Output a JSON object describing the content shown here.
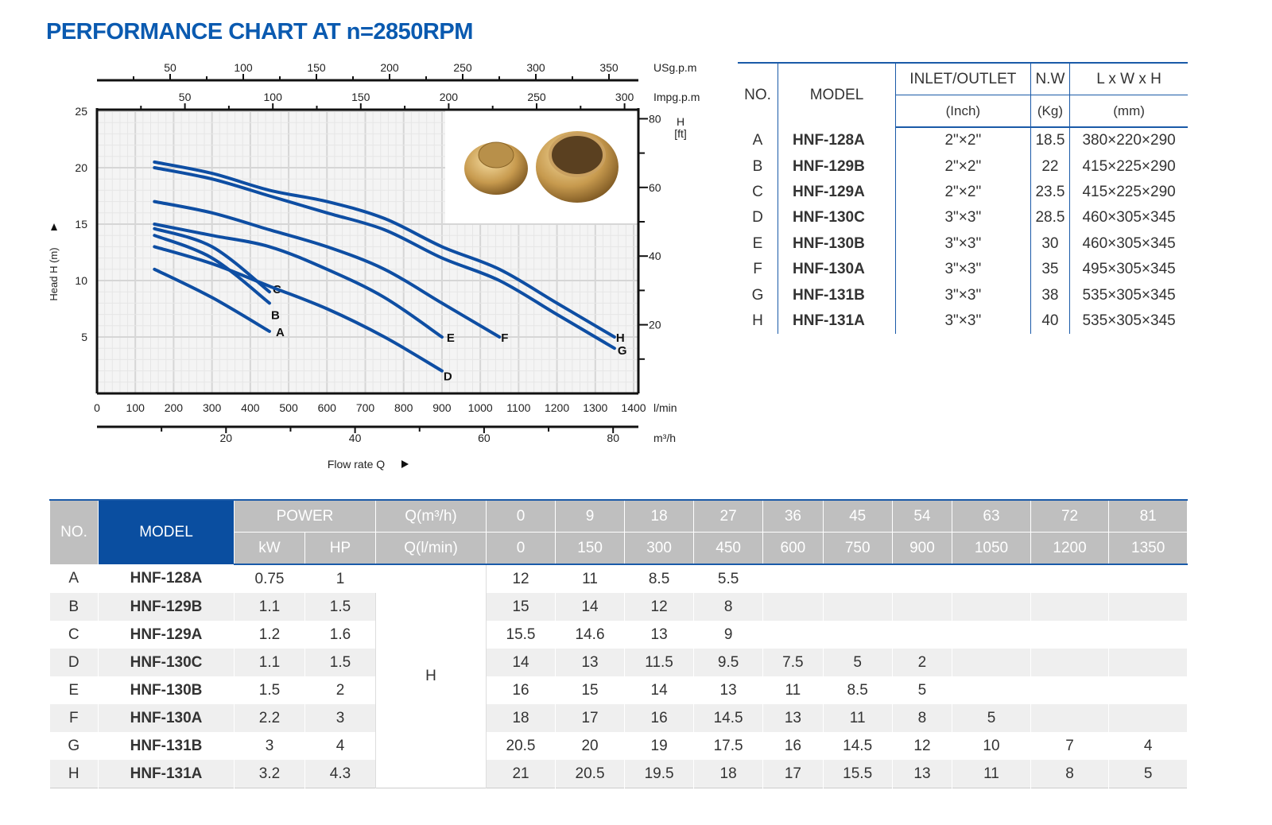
{
  "title": "PERFORMANCE CHART AT n=2850RPM",
  "chart_data": {
    "type": "line",
    "title": "PERFORMANCE CHART AT n=2850RPM",
    "xlabel": "Flow rate Q",
    "ylabel": "Head H (m)",
    "x_unit": "l/min",
    "xlim": [
      0,
      1400
    ],
    "ylim": [
      0,
      25
    ],
    "x_ticks": [
      0,
      100,
      200,
      300,
      400,
      500,
      600,
      700,
      800,
      900,
      1000,
      1100,
      1200,
      1300,
      1400
    ],
    "y_ticks": [
      5,
      10,
      15,
      20,
      25
    ],
    "usgpm_label": "USg.p.m",
    "usgpm_ticks": [
      50,
      100,
      150,
      200,
      250,
      300,
      350
    ],
    "impgpm_label": "Impg.p.m",
    "impgpm_ticks": [
      50,
      100,
      150,
      200,
      250,
      300
    ],
    "m3h_label": "m³/h",
    "m3h_ticks": [
      20,
      40,
      60,
      80
    ],
    "ft_label": "H\n[ft]",
    "ft_label_1": "H",
    "ft_label_2": "[ft]",
    "ft_ticks": [
      20,
      40,
      60,
      80
    ],
    "grid": true,
    "series": [
      {
        "name": "A",
        "x": [
          150,
          300,
          450
        ],
        "y": [
          11,
          8.5,
          5.5
        ]
      },
      {
        "name": "B",
        "x": [
          150,
          300,
          450
        ],
        "y": [
          14,
          12,
          8
        ]
      },
      {
        "name": "C",
        "x": [
          150,
          300,
          450
        ],
        "y": [
          14.6,
          13,
          9
        ]
      },
      {
        "name": "D",
        "x": [
          150,
          300,
          450,
          600,
          750,
          900
        ],
        "y": [
          13,
          11.5,
          9.5,
          7.5,
          5,
          2
        ]
      },
      {
        "name": "E",
        "x": [
          150,
          300,
          450,
          600,
          750,
          900
        ],
        "y": [
          15,
          14,
          13,
          11,
          8.5,
          5
        ]
      },
      {
        "name": "F",
        "x": [
          150,
          300,
          450,
          600,
          750,
          900,
          1050
        ],
        "y": [
          17,
          16,
          14.5,
          13,
          11,
          8,
          5
        ]
      },
      {
        "name": "G",
        "x": [
          150,
          300,
          450,
          600,
          750,
          900,
          1050,
          1200,
          1350
        ],
        "y": [
          20,
          19,
          17.5,
          16,
          14.5,
          12,
          10,
          7,
          4
        ]
      },
      {
        "name": "H",
        "x": [
          150,
          300,
          450,
          600,
          750,
          900,
          1050,
          1200,
          1350
        ],
        "y": [
          20.5,
          19.5,
          18,
          17,
          15.5,
          13,
          11,
          8,
          5
        ]
      }
    ],
    "line_color": "#0e4ea3"
  },
  "spec_table": {
    "headers": {
      "no": "NO.",
      "model": "MODEL",
      "io": "INLET/OUTLET",
      "nw": "N.W",
      "dim": "L x W x H",
      "io_unit": "(Inch)",
      "nw_unit": "(Kg)",
      "dim_unit": "(mm)"
    },
    "rows": [
      {
        "no": "A",
        "model": "HNF-128A",
        "io": "2\"×2\"",
        "nw": "18.5",
        "dim": "380×220×290"
      },
      {
        "no": "B",
        "model": "HNF-129B",
        "io": "2\"×2\"",
        "nw": "22",
        "dim": "415×225×290"
      },
      {
        "no": "C",
        "model": "HNF-129A",
        "io": "2\"×2\"",
        "nw": "23.5",
        "dim": "415×225×290"
      },
      {
        "no": "D",
        "model": "HNF-130C",
        "io": "3\"×3\"",
        "nw": "28.5",
        "dim": "460×305×345"
      },
      {
        "no": "E",
        "model": "HNF-130B",
        "io": "3\"×3\"",
        "nw": "30",
        "dim": "460×305×345"
      },
      {
        "no": "F",
        "model": "HNF-130A",
        "io": "3\"×3\"",
        "nw": "35",
        "dim": "495×305×345"
      },
      {
        "no": "G",
        "model": "HNF-131B",
        "io": "3\"×3\"",
        "nw": "38",
        "dim": "535×305×345"
      },
      {
        "no": "H",
        "model": "HNF-131A",
        "io": "3\"×3\"",
        "nw": "40",
        "dim": "535×305×345"
      }
    ]
  },
  "perf_table": {
    "headers": {
      "no": "NO.",
      "model": "MODEL",
      "power": "POWER",
      "kw": "kW",
      "hp": "HP",
      "qm3": "Q(m³/h)",
      "ql": "Q(l/min)",
      "h": "H"
    },
    "q_m3h": [
      "0",
      "9",
      "18",
      "27",
      "36",
      "45",
      "54",
      "63",
      "72",
      "81"
    ],
    "q_lmin": [
      "0",
      "150",
      "300",
      "450",
      "600",
      "750",
      "900",
      "1050",
      "1200",
      "1350"
    ],
    "rows": [
      {
        "no": "A",
        "model": "HNF-128A",
        "kw": "0.75",
        "hp": "1",
        "h": [
          "12",
          "11",
          "8.5",
          "5.5",
          "",
          "",
          "",
          "",
          "",
          ""
        ]
      },
      {
        "no": "B",
        "model": "HNF-129B",
        "kw": "1.1",
        "hp": "1.5",
        "h": [
          "15",
          "14",
          "12",
          "8",
          "",
          "",
          "",
          "",
          "",
          ""
        ]
      },
      {
        "no": "C",
        "model": "HNF-129A",
        "kw": "1.2",
        "hp": "1.6",
        "h": [
          "15.5",
          "14.6",
          "13",
          "9",
          "",
          "",
          "",
          "",
          "",
          ""
        ]
      },
      {
        "no": "D",
        "model": "HNF-130C",
        "kw": "1.1",
        "hp": "1.5",
        "h": [
          "14",
          "13",
          "11.5",
          "9.5",
          "7.5",
          "5",
          "2",
          "",
          "",
          ""
        ]
      },
      {
        "no": "E",
        "model": "HNF-130B",
        "kw": "1.5",
        "hp": "2",
        "h": [
          "16",
          "15",
          "14",
          "13",
          "11",
          "8.5",
          "5",
          "",
          "",
          ""
        ]
      },
      {
        "no": "F",
        "model": "HNF-130A",
        "kw": "2.2",
        "hp": "3",
        "h": [
          "18",
          "17",
          "16",
          "14.5",
          "13",
          "11",
          "8",
          "5",
          "",
          ""
        ]
      },
      {
        "no": "G",
        "model": "HNF-131B",
        "kw": "3",
        "hp": "4",
        "h": [
          "20.5",
          "20",
          "19",
          "17.5",
          "16",
          "14.5",
          "12",
          "10",
          "7",
          "4"
        ]
      },
      {
        "no": "H",
        "model": "HNF-131A",
        "kw": "3.2",
        "hp": "4.3",
        "h": [
          "21",
          "20.5",
          "19.5",
          "18",
          "17",
          "15.5",
          "13",
          "11",
          "8",
          "5"
        ]
      }
    ]
  }
}
